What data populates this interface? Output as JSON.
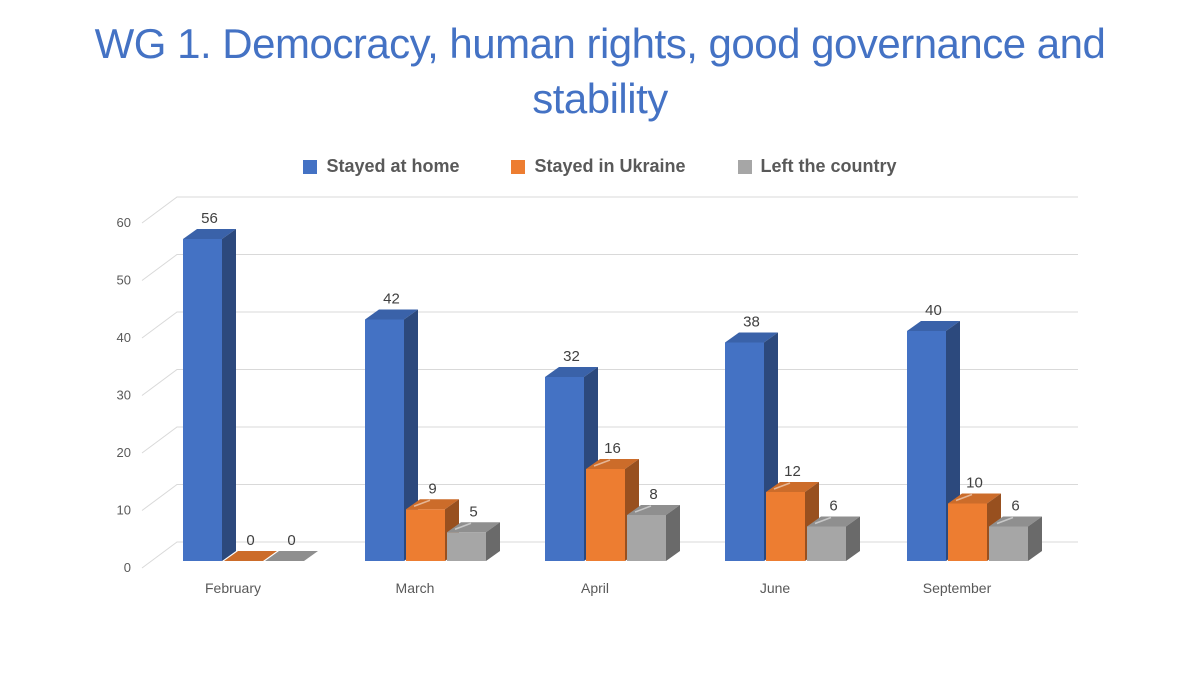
{
  "title": "WG 1. Democracy, human rights, good governance and stability",
  "title_color": "#4472C4",
  "legend": {
    "items": [
      {
        "label": "Stayed at home",
        "color": "#4472C4"
      },
      {
        "label": "Stayed in Ukraine",
        "color": "#ED7D31"
      },
      {
        "label": "Left the country",
        "color": "#A6A6A6"
      }
    ]
  },
  "chart_data": {
    "type": "bar",
    "subtype": "3d-clustered-column",
    "title": "",
    "xlabel": "",
    "ylabel": "",
    "categories": [
      "February",
      "March",
      "April",
      "June",
      "September"
    ],
    "series": [
      {
        "name": "Stayed at home",
        "color": "#4472C4",
        "values": [
          56,
          42,
          32,
          38,
          40
        ]
      },
      {
        "name": "Stayed in Ukraine",
        "color": "#ED7D31",
        "values": [
          0,
          9,
          16,
          12,
          10
        ]
      },
      {
        "name": "Left the country",
        "color": "#A6A6A6",
        "values": [
          0,
          5,
          8,
          6,
          6
        ]
      }
    ],
    "ylim": [
      0,
      60
    ],
    "yticks": [
      0,
      10,
      20,
      30,
      40,
      50,
      60
    ],
    "grid": true,
    "gridline_color": "#D9D9D9",
    "data_labels": true,
    "data_label_color": "#404040",
    "axis_label_color": "#595959",
    "legend_position": "top"
  }
}
